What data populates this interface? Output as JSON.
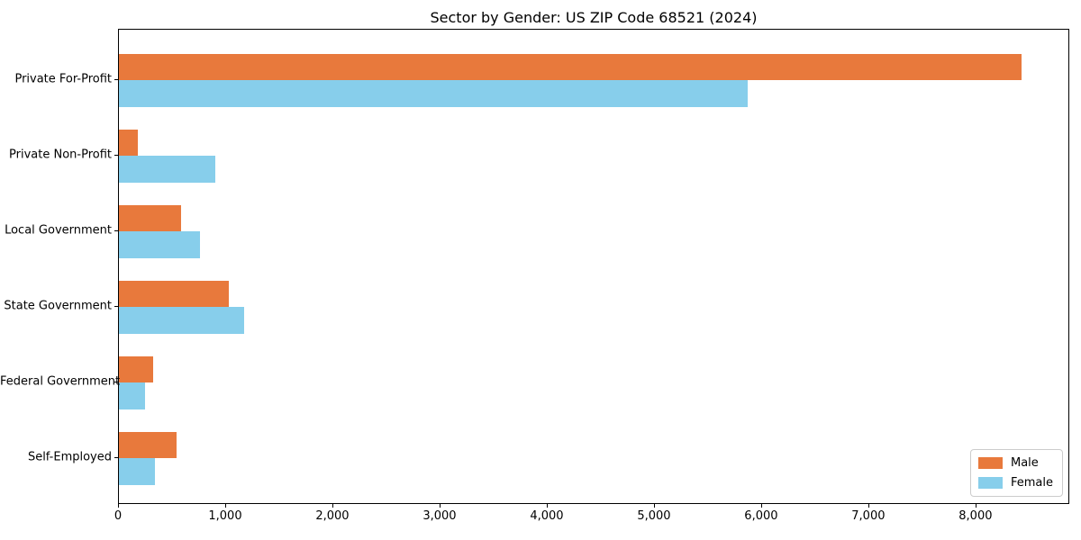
{
  "chart_data": {
    "type": "bar",
    "orientation": "horizontal",
    "title": "Sector by Gender: US ZIP Code 68521 (2024)",
    "categories": [
      "Private For-Profit",
      "Private Non-Profit",
      "Local Government",
      "State Government",
      "Federal Government",
      "Self-Employed"
    ],
    "series": [
      {
        "name": "Male",
        "color": "#e8793c",
        "values": [
          8440,
          175,
          580,
          1030,
          320,
          540
        ]
      },
      {
        "name": "Female",
        "color": "#87ceeb",
        "values": [
          5880,
          900,
          760,
          1170,
          245,
          335
        ]
      }
    ],
    "xlabel": "",
    "ylabel": "",
    "xlim": [
      0,
      8875
    ],
    "xticks": [
      0,
      1000,
      2000,
      3000,
      4000,
      5000,
      6000,
      7000,
      8000
    ],
    "xtick_labels": [
      "0",
      "1,000",
      "2,000",
      "3,000",
      "4,000",
      "5,000",
      "6,000",
      "7,000",
      "8,000"
    ],
    "grid": false,
    "legend": {
      "position": "lower right",
      "labels": [
        "Male",
        "Female"
      ]
    }
  }
}
